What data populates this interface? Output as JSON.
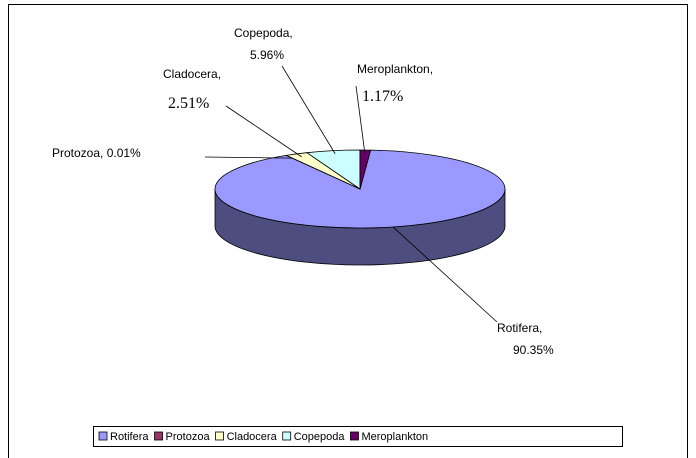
{
  "chart_data": {
    "type": "pie",
    "categories": [
      "Rotifera",
      "Protozoa",
      "Cladocera",
      "Copepoda",
      "Meroplankton"
    ],
    "values": [
      90.35,
      0.01,
      2.51,
      5.96,
      1.17
    ],
    "value_labels": [
      "Rotifera, 90.35%",
      "Protozoa, 0.01%",
      "Cladocera, 2.51%",
      "Copepoda, 5.96%",
      "Meroplankton, 1.17%"
    ],
    "colors": [
      "#9999ff",
      "#993366",
      "#ffffcc",
      "#ccffff",
      "#660066"
    ],
    "legend": "bottom"
  }
}
